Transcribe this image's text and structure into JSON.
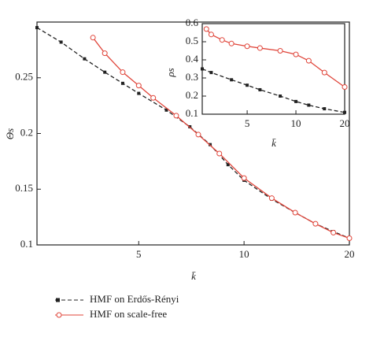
{
  "chart_data": [
    {
      "type": "line",
      "x_label": "k̄",
      "y_label": "Θs",
      "xscale": "log",
      "xlim": [
        2.56,
        20
      ],
      "ylim": [
        0.1,
        0.3
      ],
      "xticks": [
        5,
        10,
        20
      ],
      "yticks": [
        0.1,
        0.15,
        0.2,
        0.25
      ],
      "legend": "bottom",
      "series": [
        {
          "name": "HMF on Erdős-Rényi",
          "color": "#222222",
          "dash": true,
          "marker": "square",
          "x": [
            2.56,
            3,
            3.5,
            4,
            4.5,
            5,
            6,
            7,
            8,
            9,
            10,
            12,
            14,
            16,
            18,
            20
          ],
          "values": [
            0.295,
            0.282,
            0.267,
            0.255,
            0.245,
            0.236,
            0.221,
            0.206,
            0.19,
            0.172,
            0.158,
            0.141,
            0.129,
            0.119,
            0.112,
            0.106
          ]
        },
        {
          "name": "HMF on scale-free",
          "color": "#e0453a",
          "dash": false,
          "marker": "circle",
          "x": [
            3.7,
            4,
            4.5,
            5,
            5.5,
            6.4,
            7.4,
            8.5,
            10,
            12,
            14,
            16,
            18,
            20
          ],
          "values": [
            0.286,
            0.272,
            0.255,
            0.243,
            0.232,
            0.216,
            0.199,
            0.182,
            0.16,
            0.142,
            0.129,
            0.119,
            0.111,
            0.106
          ]
        }
      ]
    },
    {
      "type": "line",
      "x_label": "k̄",
      "y_label": "ρs",
      "xscale": "log",
      "xlim": [
        2.64,
        20
      ],
      "ylim": [
        0.1,
        0.6
      ],
      "xticks": [
        5,
        10,
        20
      ],
      "yticks": [
        0.1,
        0.2,
        0.3,
        0.4,
        0.5,
        0.6
      ],
      "series": [
        {
          "color": "#222222",
          "dash": true,
          "marker": "square",
          "x": [
            2.64,
            3,
            4,
            5,
            6,
            8,
            10,
            12,
            15,
            20
          ],
          "values": [
            0.35,
            0.33,
            0.29,
            0.26,
            0.235,
            0.2,
            0.17,
            0.15,
            0.13,
            0.11
          ]
        },
        {
          "color": "#e0453a",
          "dash": false,
          "marker": "circle",
          "x": [
            2.8,
            3,
            3.5,
            4,
            5,
            6,
            8,
            10,
            12,
            15,
            20
          ],
          "values": [
            0.57,
            0.54,
            0.51,
            0.49,
            0.475,
            0.465,
            0.45,
            0.43,
            0.395,
            0.33,
            0.25
          ]
        }
      ]
    }
  ]
}
